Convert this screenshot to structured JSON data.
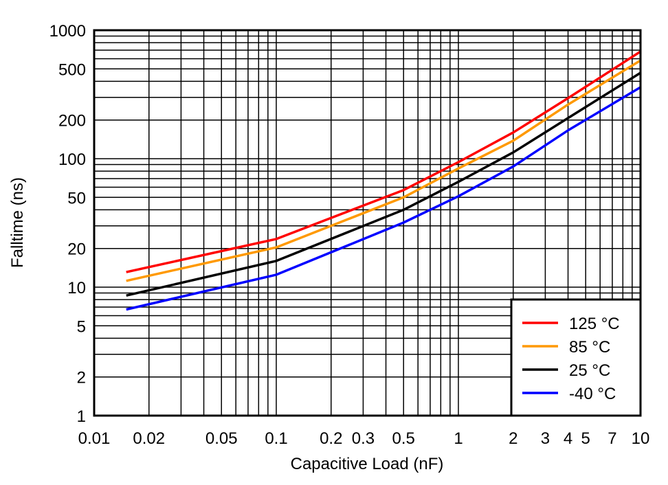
{
  "chart_data": {
    "type": "line",
    "title": "",
    "xlabel": "Capacitive Load (nF)",
    "ylabel": "Falltime (ns)",
    "xscale": "log",
    "yscale": "log",
    "xlim": [
      0.01,
      10
    ],
    "ylim": [
      1,
      1000
    ],
    "grid": true,
    "legend_position": "bottom-right",
    "x_ticks": [
      "0.01",
      "0.02",
      "0.05",
      "0.1",
      "0.2",
      "0.3",
      "0.5",
      "1",
      "2",
      "3",
      "4",
      "5",
      "7",
      "10"
    ],
    "y_ticks": [
      "1",
      "2",
      "5",
      "10",
      "20",
      "50",
      "100",
      "200",
      "500",
      "1000"
    ],
    "x": [
      0.015,
      0.1,
      0.5,
      1,
      2,
      4,
      10
    ],
    "series": [
      {
        "name": "125 °C",
        "color": "#ff0000",
        "values": [
          13.1,
          23.7,
          57,
          94,
          160,
          296,
          683
        ]
      },
      {
        "name": "85 °C",
        "color": "#ff9900",
        "values": [
          11.2,
          20.4,
          50,
          84,
          138,
          264,
          582
        ]
      },
      {
        "name": "25 °C",
        "color": "#000000",
        "values": [
          8.6,
          16,
          40,
          66,
          112,
          207,
          466
        ]
      },
      {
        "name": "-40 °C",
        "color": "#0000ff",
        "values": [
          6.7,
          12.5,
          31.8,
          51,
          87,
          166,
          360
        ]
      }
    ]
  }
}
